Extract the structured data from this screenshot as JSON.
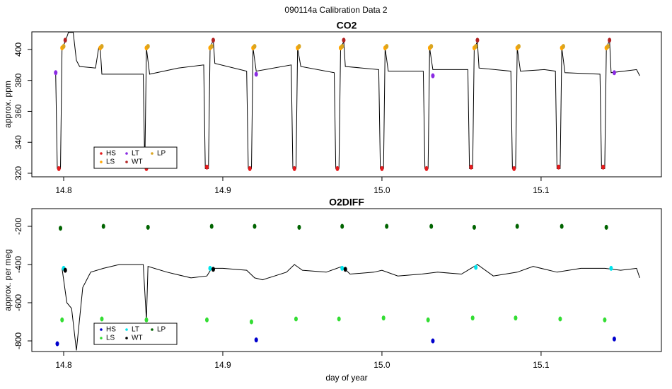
{
  "title": "090114a   Calibration Data 2",
  "chart_data": [
    {
      "type": "line",
      "title": "CO2",
      "ylabel": "approx. ppm",
      "xlim": [
        14.78,
        15.1756
      ],
      "xticks": [
        14.8,
        14.9,
        {
          "value": 15,
          "label": "15.0"
        },
        15.1
      ],
      "ylim": [
        317.7,
        411.4
      ],
      "yticks": [
        320,
        340,
        360,
        380,
        400
      ],
      "trace": {
        "color": "#000000",
        "x": [
          14.795,
          14.796,
          14.798,
          14.799,
          14.801,
          14.803,
          14.806,
          14.808,
          14.81,
          14.82,
          14.822,
          14.823,
          14.824,
          14.85,
          14.851,
          14.852,
          14.854,
          14.872,
          14.888,
          14.889,
          14.891,
          14.892,
          14.894,
          14.895,
          14.915,
          14.916,
          14.918,
          14.919,
          14.921,
          14.943,
          14.944,
          14.946,
          14.947,
          14.949,
          14.97,
          14.971,
          14.973,
          14.974,
          14.976,
          14.977,
          14.998,
          14.999,
          15.001,
          15.002,
          15.004,
          15.026,
          15.027,
          15.029,
          15.03,
          15.032,
          15.054,
          15.055,
          15.057,
          15.058,
          15.06,
          15.061,
          15.081,
          15.082,
          15.084,
          15.085,
          15.087,
          15.102,
          15.109,
          15.11,
          15.112,
          15.113,
          15.115,
          15.137,
          15.138,
          15.14,
          15.141,
          15.143,
          15.144,
          15.16,
          15.162
        ],
        "values": [
          385,
          323,
          323,
          401,
          405,
          411,
          411,
          393,
          389,
          388,
          401,
          401,
          384,
          384,
          323,
          401,
          384,
          388,
          390,
          323,
          323,
          401,
          406,
          391,
          386,
          323,
          323,
          401,
          386,
          390,
          323,
          323,
          401,
          389,
          385,
          323,
          323,
          401,
          405,
          389,
          387,
          323,
          323,
          401,
          386,
          386,
          323,
          323,
          401,
          387,
          387,
          323,
          323,
          401,
          405,
          388,
          386,
          323,
          323,
          401,
          386,
          387,
          386,
          323,
          323,
          401,
          385,
          384,
          323,
          323,
          401,
          406,
          385,
          387,
          383
        ]
      },
      "series": [
        {
          "name": "HS",
          "color": "#e41a1c",
          "x": [
            14.797,
            14.852,
            14.89,
            14.917,
            14.945,
            14.972,
            15.0,
            15.028,
            15.056,
            15.083,
            15.111,
            15.139
          ],
          "values": [
            323,
            323,
            324,
            323,
            323,
            323,
            323,
            323,
            324,
            323,
            324,
            324
          ]
        },
        {
          "name": "LS",
          "color": "#ffa500",
          "x": [
            14.799,
            14.823,
            14.852,
            14.892,
            14.919,
            14.947,
            14.974,
            15.002,
            15.03,
            15.058,
            15.085,
            15.113,
            15.141
          ],
          "values": [
            401,
            401,
            401,
            401,
            401,
            401,
            401,
            401,
            401,
            401,
            401,
            401,
            401
          ]
        },
        {
          "name": "LT",
          "color": "#8a2be2",
          "x": [
            14.795,
            14.921,
            15.032,
            15.146
          ],
          "values": [
            385,
            384,
            383,
            385
          ]
        },
        {
          "name": "WT",
          "color": "#b22222",
          "x": [
            14.801,
            14.894,
            14.976,
            15.06,
            15.143
          ],
          "values": [
            406,
            406,
            406,
            406,
            406
          ]
        },
        {
          "name": "LP",
          "color": "#daa520",
          "x": [
            14.8,
            14.824,
            14.853,
            14.893,
            14.92,
            14.948,
            14.975,
            15.003,
            15.031,
            15.059,
            15.086,
            15.114,
            15.142
          ],
          "values": [
            402,
            402,
            402,
            402,
            402,
            402,
            402,
            402,
            402,
            402,
            402,
            402,
            402
          ]
        }
      ]
    },
    {
      "type": "line",
      "title": "O2DIFF",
      "ylabel": "approx. per meg",
      "xlabel": "day of year",
      "xlim": [
        14.78,
        15.1756
      ],
      "xticks": [
        14.8,
        14.9,
        {
          "value": 15,
          "label": "15.0"
        },
        15.1
      ],
      "ylim": [
        -855.6,
        -107.4
      ],
      "yticks": [
        -800,
        -600,
        -400,
        -200
      ],
      "trace": {
        "color": "#000000",
        "x": [
          14.799,
          14.802,
          14.805,
          14.808,
          14.812,
          14.817,
          14.825,
          14.835,
          14.85,
          14.852,
          14.853,
          14.865,
          14.88,
          14.89,
          14.893,
          14.9,
          14.915,
          14.92,
          14.925,
          14.94,
          14.945,
          14.95,
          14.965,
          14.975,
          14.98,
          14.995,
          15.0,
          15.01,
          15.025,
          15.035,
          15.05,
          15.06,
          15.07,
          15.085,
          15.095,
          15.11,
          15.125,
          15.14,
          15.15,
          15.16,
          15.162
        ],
        "values": [
          -420,
          -600,
          -630,
          -850,
          -520,
          -440,
          -420,
          -400,
          -400,
          -690,
          -410,
          -440,
          -470,
          -460,
          -420,
          -420,
          -430,
          -470,
          -480,
          -440,
          -400,
          -430,
          -440,
          -410,
          -450,
          -440,
          -430,
          -460,
          -450,
          -440,
          -450,
          -400,
          -460,
          -440,
          -410,
          -440,
          -420,
          -420,
          -430,
          -420,
          -470
        ]
      },
      "series": [
        {
          "name": "HS",
          "color": "#0000cd",
          "x": [
            14.796,
            14.921,
            15.032,
            15.146
          ],
          "values": [
            -815,
            -795,
            -800,
            -790
          ]
        },
        {
          "name": "LS",
          "color": "#33dd33",
          "x": [
            14.799,
            14.824,
            14.852,
            14.89,
            14.918,
            14.946,
            14.973,
            15.001,
            15.029,
            15.057,
            15.084,
            15.112,
            15.14
          ],
          "values": [
            -690,
            -685,
            -690,
            -690,
            -700,
            -685,
            -685,
            -680,
            -690,
            -680,
            -680,
            -685,
            -690
          ]
        },
        {
          "name": "LT",
          "color": "#00e5ee",
          "x": [
            14.8,
            14.892,
            14.975,
            15.059,
            15.144
          ],
          "values": [
            -420,
            -420,
            -420,
            -415,
            -420
          ]
        },
        {
          "name": "WT",
          "color": "#000000",
          "x": [
            14.801,
            14.894,
            14.977
          ],
          "values": [
            -430,
            -425,
            -425
          ]
        },
        {
          "name": "LP",
          "color": "#006400",
          "x": [
            14.798,
            14.825,
            14.853,
            14.893,
            14.92,
            14.948,
            14.975,
            15.003,
            15.031,
            15.058,
            15.085,
            15.113,
            15.141
          ],
          "values": [
            -210,
            -200,
            -205,
            -200,
            -200,
            -205,
            -200,
            -200,
            -200,
            -205,
            -200,
            -200,
            -205
          ]
        }
      ]
    }
  ]
}
